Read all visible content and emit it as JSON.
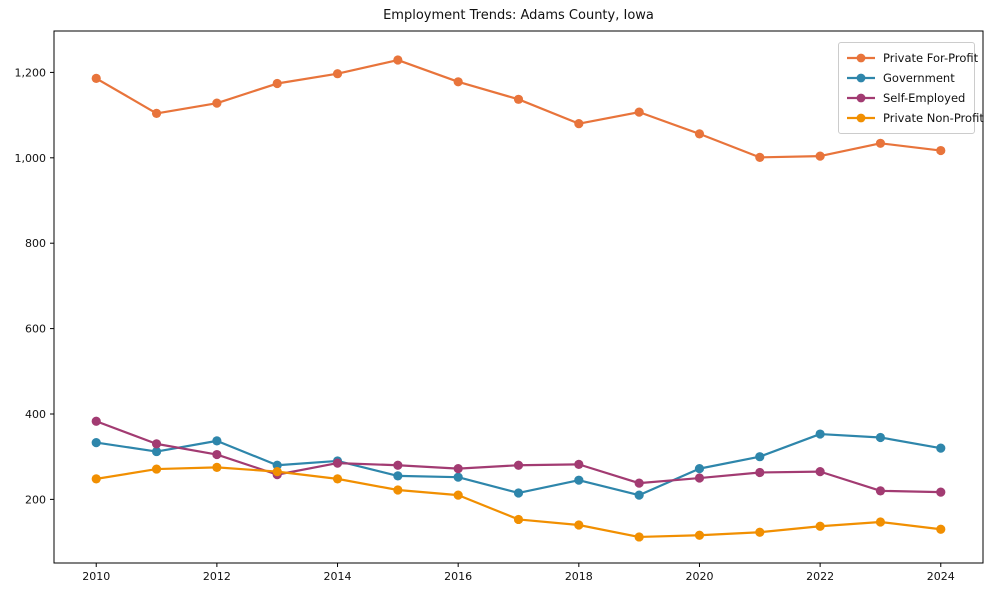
{
  "figure": {
    "background_color": "#ffffff",
    "frame_color": "#000000",
    "tick_color": "#000000",
    "text_color": "#111111",
    "legend_border_color": "#cccccc"
  },
  "chart_data": {
    "type": "line",
    "title": "Employment Trends: Adams County, Iowa",
    "xlabel": "",
    "ylabel": "",
    "grid": false,
    "legend_position": "upper right",
    "x": [
      2010,
      2011,
      2012,
      2013,
      2014,
      2015,
      2016,
      2017,
      2018,
      2019,
      2020,
      2021,
      2022,
      2023,
      2024
    ],
    "series": [
      {
        "name": "Private For-Profit",
        "color": "#e8743b",
        "values": [
          1186,
          1104,
          1128,
          1174,
          1197,
          1229,
          1178,
          1137,
          1080,
          1107,
          1056,
          1001,
          1004,
          1034,
          1017
        ]
      },
      {
        "name": "Government",
        "color": "#2e86ab",
        "values": [
          333,
          312,
          337,
          280,
          290,
          255,
          252,
          215,
          245,
          210,
          272,
          300,
          353,
          345,
          320
        ]
      },
      {
        "name": "Self-Employed",
        "color": "#a23b72",
        "values": [
          383,
          330,
          305,
          258,
          285,
          280,
          272,
          280,
          282,
          238,
          250,
          263,
          265,
          220,
          217
        ]
      },
      {
        "name": "Private Non-Profit",
        "color": "#f18f01",
        "values": [
          248,
          271,
          275,
          265,
          248,
          222,
          210,
          153,
          140,
          112,
          116,
          123,
          137,
          147,
          130
        ]
      }
    ],
    "xlim": [
      2009.3,
      2024.7
    ],
    "ylim": [
      51,
      1297
    ],
    "xticks": {
      "values": [
        2010,
        2012,
        2014,
        2016,
        2018,
        2020,
        2022,
        2024
      ],
      "labels": [
        "2010",
        "2012",
        "2014",
        "2016",
        "2018",
        "2020",
        "2022",
        "2024"
      ]
    },
    "yticks": {
      "values": [
        200,
        400,
        600,
        800,
        1000,
        1200
      ],
      "labels": [
        "200",
        "400",
        "600",
        "800",
        "1,000",
        "1,200"
      ]
    }
  }
}
